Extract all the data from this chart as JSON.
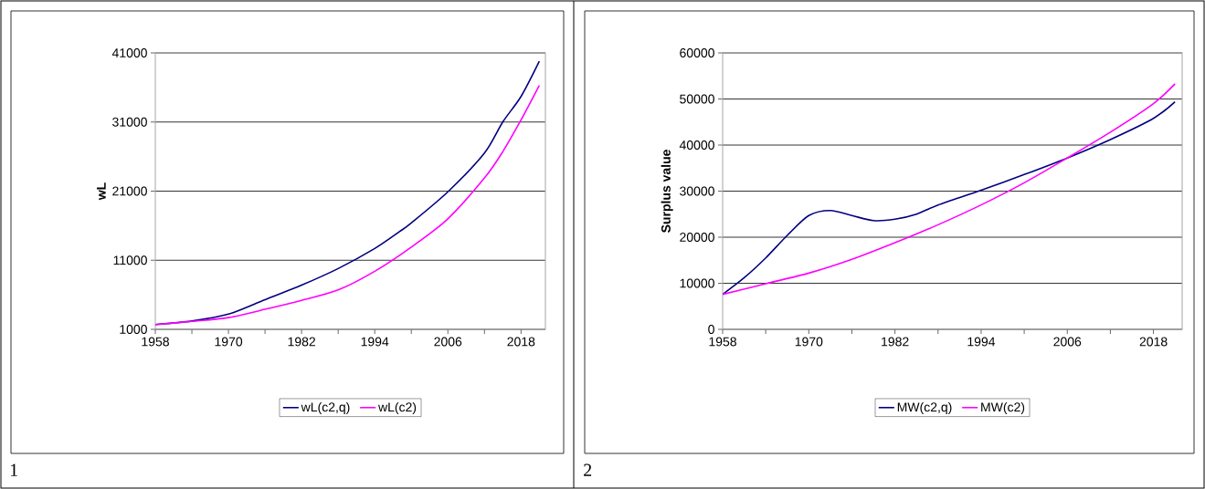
{
  "chart_data": [
    {
      "type": "line",
      "ylabel": "wL",
      "xlim": [
        1958,
        2022
      ],
      "ylim": [
        1000,
        41000
      ],
      "xticks": [
        1958,
        {
          "value": 1964,
          "label": null
        },
        1970,
        {
          "value": 1976,
          "label": null
        },
        1982,
        {
          "value": 1988,
          "label": null
        },
        1994,
        {
          "value": 2000,
          "label": null
        },
        2006,
        {
          "value": 2012,
          "label": null
        },
        2018
      ],
      "yticks": [
        1000,
        11000,
        21000,
        31000,
        41000
      ],
      "grid": "y",
      "legend": "bottom",
      "annotations": [
        "1"
      ],
      "series": [
        {
          "name": "wL(c2,q)",
          "color": "#000080",
          "x": [
            1958,
            1964,
            1970,
            1976,
            1982,
            1988,
            1994,
            1998,
            2000,
            2006,
            2012,
            2015,
            2018,
            2021
          ],
          "values": [
            1700,
            2200,
            3200,
            5300,
            7400,
            9800,
            12700,
            15100,
            16400,
            20900,
            26500,
            31000,
            34700,
            39800
          ]
        },
        {
          "name": "wL(c2)",
          "color": "#ff00ff",
          "x": [
            1958,
            1964,
            1970,
            1976,
            1982,
            1988,
            1994,
            2000,
            2006,
            2012,
            2015,
            2018,
            2021
          ],
          "values": [
            1700,
            2150,
            2700,
            3900,
            5200,
            6700,
            9400,
            12900,
            17000,
            22900,
            26700,
            31300,
            36300
          ]
        }
      ]
    },
    {
      "type": "line",
      "ylabel": "Surplus value",
      "xlim": [
        1958,
        2022
      ],
      "ylim": [
        0,
        60000
      ],
      "xticks": [
        1958,
        {
          "value": 1964,
          "label": null
        },
        1970,
        {
          "value": 1976,
          "label": null
        },
        1982,
        {
          "value": 1988,
          "label": null
        },
        1994,
        {
          "value": 2000,
          "label": null
        },
        2006,
        {
          "value": 2012,
          "label": null
        },
        2018
      ],
      "yticks": [
        0,
        10000,
        20000,
        30000,
        40000,
        50000,
        60000
      ],
      "grid": "y",
      "legend": "bottom",
      "annotations": [
        "2"
      ],
      "series": [
        {
          "name": "MW(c2,q)",
          "color": "#000080",
          "x": [
            1958,
            1961,
            1964,
            1967,
            1970,
            1973,
            1976,
            1979,
            1982,
            1985,
            1988,
            1994,
            2000,
            2006,
            2012,
            2018,
            2021
          ],
          "values": [
            7600,
            11200,
            15500,
            20400,
            24700,
            25800,
            24700,
            23600,
            23900,
            25000,
            27000,
            30200,
            33600,
            37200,
            41200,
            45800,
            49400
          ]
        },
        {
          "name": "MW(c2)",
          "color": "#ff00ff",
          "x": [
            1958,
            1964,
            1970,
            1976,
            1982,
            1988,
            1994,
            2000,
            2006,
            2012,
            2018,
            2021
          ],
          "values": [
            7600,
            9900,
            12200,
            15200,
            18800,
            22700,
            27000,
            31800,
            37200,
            42800,
            49000,
            53300
          ]
        }
      ]
    }
  ]
}
